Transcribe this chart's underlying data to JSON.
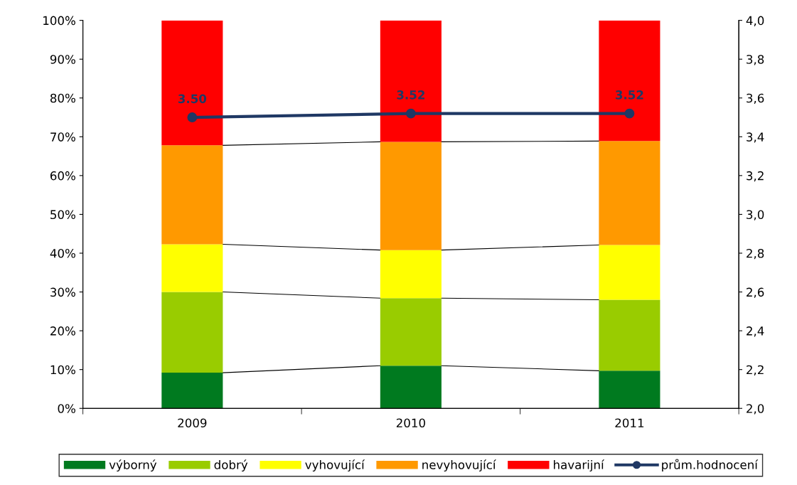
{
  "chart_data": {
    "type": "bar",
    "stacked": true,
    "categories": [
      "2009",
      "2010",
      "2011"
    ],
    "series": [
      {
        "name": "výborný",
        "color": "#007a1f",
        "values": [
          9.2,
          11.0,
          9.7
        ]
      },
      {
        "name": "dobrý",
        "color": "#99cc00",
        "values": [
          20.8,
          17.4,
          18.3
        ]
      },
      {
        "name": "vyhovující",
        "color": "#ffff00",
        "values": [
          12.3,
          12.4,
          14.1
        ]
      },
      {
        "name": "nevyhovující",
        "color": "#ff9900",
        "values": [
          25.5,
          27.9,
          26.8
        ]
      },
      {
        "name": "havarijní",
        "color": "#ff0000",
        "values": [
          32.2,
          31.3,
          31.1
        ]
      },
      {
        "name": "prům.hodnocení",
        "type": "line",
        "axis": "y2",
        "color": "#1f3864",
        "marker": "circle",
        "values": [
          3.5,
          3.52,
          3.52
        ],
        "value_labels": [
          "3.50",
          "3.52",
          "3.52"
        ]
      }
    ],
    "ylim": [
      0,
      100
    ],
    "yticks": [
      {
        "value": 0,
        "label": "0%"
      },
      {
        "value": 10,
        "label": "10%"
      },
      {
        "value": 20,
        "label": "20%"
      },
      {
        "value": 30,
        "label": "30%"
      },
      {
        "value": 40,
        "label": "40%"
      },
      {
        "value": 50,
        "label": "50%"
      },
      {
        "value": 60,
        "label": "60%"
      },
      {
        "value": 70,
        "label": "70%"
      },
      {
        "value": 80,
        "label": "80%"
      },
      {
        "value": 90,
        "label": "90%"
      },
      {
        "value": 100,
        "label": "100%"
      }
    ],
    "y2lim": [
      2.0,
      4.0
    ],
    "y2ticks": [
      {
        "value": 2.0,
        "label": "2,0"
      },
      {
        "value": 2.2,
        "label": "2,2"
      },
      {
        "value": 2.4,
        "label": "2,4"
      },
      {
        "value": 2.6,
        "label": "2,6"
      },
      {
        "value": 2.8,
        "label": "2,8"
      },
      {
        "value": 3.0,
        "label": "3,0"
      },
      {
        "value": 3.2,
        "label": "3,2"
      },
      {
        "value": 3.4,
        "label": "3,4"
      },
      {
        "value": 3.6,
        "label": "3,6"
      },
      {
        "value": 3.8,
        "label": "3,8"
      },
      {
        "value": 4.0,
        "label": "4,0"
      }
    ],
    "grid": false,
    "legend": "bottom"
  }
}
